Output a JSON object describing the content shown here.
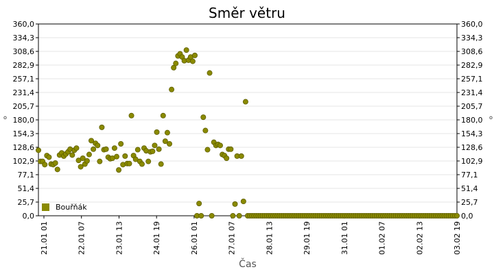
{
  "chart_data": {
    "type": "scatter",
    "title": "Směr větru",
    "xlabel": "Čas",
    "ylabel": "°",
    "ylim": [
      0,
      360
    ],
    "y_ticks": [
      "0,0",
      "25,7",
      "51,4",
      "77,1",
      "102,9",
      "128,6",
      "154,3",
      "180,0",
      "205,7",
      "231,4",
      "257,1",
      "282,9",
      "308,6",
      "334,3",
      "360,0"
    ],
    "x_ticks": [
      "21.01 01",
      "22.01 07",
      "23.01 13",
      "24.01 19",
      "26.01 01",
      "27.01 07",
      "28.01 13",
      "29.01 19",
      "31.01 01",
      "01.02 07",
      "02.02 13",
      "03.02 19"
    ],
    "grid": true,
    "legend_position": "bottom-left",
    "point_color": "#8a8a00",
    "series": [
      {
        "name": "Bouřňák",
        "values": [
          123,
          102,
          102,
          96,
          113,
          110,
          97,
          96,
          99,
          87,
          114,
          118,
          112,
          116,
          120,
          125,
          114,
          123,
          127,
          104,
          92,
          108,
          97,
          103,
          115,
          141,
          125,
          136,
          132,
          102,
          166,
          124,
          125,
          110,
          107,
          108,
          127,
          111,
          86,
          135,
          96,
          112,
          98,
          98,
          188,
          113,
          106,
          124,
          102,
          97,
          127,
          122,
          102,
          120,
          121,
          132,
          157,
          125,
          97,
          188,
          140,
          156,
          135,
          237,
          278,
          286,
          300,
          304,
          298,
          291,
          311,
          292,
          298,
          290,
          301,
          0,
          23,
          0,
          185,
          160,
          124,
          268,
          0,
          138,
          132,
          134,
          132,
          115,
          113,
          108,
          125,
          125,
          0,
          22,
          112,
          0,
          112,
          27,
          214,
          0,
          0,
          0,
          0,
          0,
          0,
          0,
          0,
          0,
          0,
          0,
          0,
          0,
          0,
          0,
          0,
          0,
          0,
          0,
          0,
          0,
          0,
          0,
          0,
          0,
          0,
          0,
          0,
          0,
          0,
          0,
          0,
          0,
          0,
          0,
          0,
          0,
          0,
          0,
          0,
          0,
          0,
          0,
          0,
          0,
          0,
          0,
          0,
          0,
          0,
          0,
          0,
          0,
          0,
          0,
          0,
          0,
          0,
          0,
          0,
          0,
          0,
          0,
          0,
          0,
          0,
          0,
          0,
          0,
          0,
          0,
          0,
          0,
          0,
          0,
          0,
          0,
          0,
          0,
          0,
          0,
          0,
          0,
          0,
          0,
          0,
          0,
          0,
          0,
          0,
          0,
          0,
          0,
          0,
          0,
          0,
          0,
          0,
          0,
          0
        ]
      }
    ]
  }
}
